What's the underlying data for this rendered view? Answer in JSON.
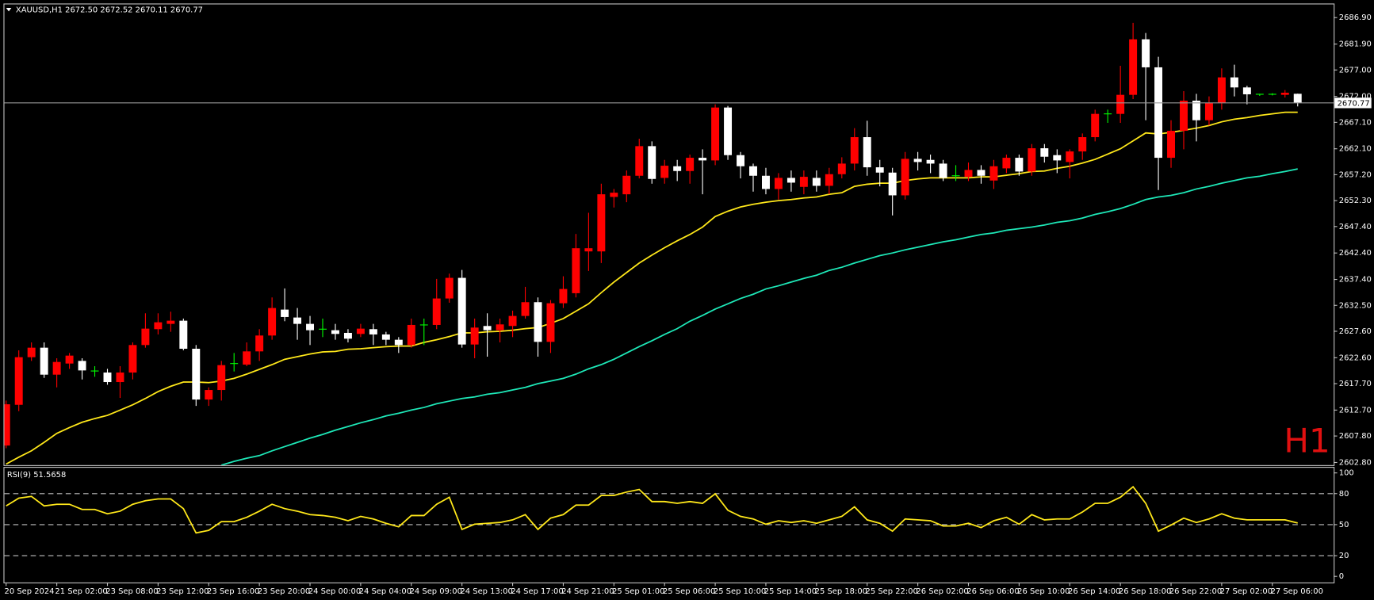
{
  "chart_data": [
    {
      "type": "candlestick",
      "title": "XAUUSD,H1  2672.50 2672.52 2670.11 2670.77",
      "watermark": "H1",
      "categories": [
        "20 Sep 2024",
        null,
        null,
        null,
        "21 Sep 02:00",
        null,
        null,
        null,
        "23 Sep 08:00",
        null,
        null,
        null,
        "23 Sep 12:00",
        null,
        null,
        null,
        "23 Sep 16:00",
        null,
        null,
        null,
        "23 Sep 20:00",
        null,
        null,
        null,
        "24 Sep 00:00",
        null,
        null,
        null,
        "24 Sep 04:00",
        null,
        null,
        null,
        "24 Sep 09:00",
        null,
        null,
        null,
        "24 Sep 13:00",
        null,
        null,
        null,
        "24 Sep 17:00",
        null,
        null,
        null,
        "24 Sep 21:00",
        null,
        null,
        null,
        "25 Sep 01:00",
        null,
        null,
        null,
        "25 Sep 06:00",
        null,
        null,
        null,
        "25 Sep 10:00",
        null,
        null,
        null,
        "25 Sep 14:00",
        null,
        null,
        null,
        "25 Sep 18:00",
        null,
        null,
        null,
        "25 Sep 22:00",
        null,
        null,
        null,
        "26 Sep 02:00",
        null,
        null,
        null,
        "26 Sep 06:00",
        null,
        null,
        null,
        "26 Sep 10:00",
        null,
        null,
        null,
        "26 Sep 14:00",
        null,
        null,
        null,
        "26 Sep 18:00",
        null,
        null,
        null,
        "26 Sep 22:00",
        null,
        null,
        null,
        "27 Sep 02:00",
        null,
        null,
        null,
        "27 Sep 06:00",
        null,
        null
      ],
      "open": [
        2606.0,
        2613.7,
        2622.7,
        2624.5,
        2619.4,
        2621.5,
        2622.0,
        2620.1,
        2619.8,
        2618.0,
        2619.8,
        2625.0,
        2628.0,
        2629.0,
        2629.6,
        2624.3,
        2614.7,
        2616.5,
        2621.5,
        2621.3,
        2623.8,
        2626.8,
        2631.7,
        2630.2,
        2629.0,
        2628.0,
        2627.8,
        2627.3,
        2627.1,
        2628.0,
        2627.0,
        2626.0,
        2625.0,
        2628.8,
        2628.8,
        2633.8,
        2637.7,
        2625.1,
        2628.6,
        2627.8,
        2628.6,
        2630.5,
        2633.1,
        2625.6,
        2632.9,
        2634.8,
        2642.7,
        2642.7,
        2653.0,
        2653.5,
        2657.0,
        2662.6,
        2656.6,
        2658.8,
        2657.9,
        2660.4,
        2659.9,
        2669.9,
        2660.9,
        2658.8,
        2657.0,
        2654.5,
        2656.6,
        2654.9,
        2656.6,
        2655.1,
        2657.3,
        2659.3,
        2664.3,
        2658.6,
        2657.6,
        2653.3,
        2660.2,
        2660.0,
        2659.3,
        2657.0,
        2656.8,
        2658.1,
        2656.1,
        2658.4,
        2660.4,
        2657.8,
        2662.2,
        2660.9,
        2659.6,
        2661.6,
        2664.3,
        2668.7,
        2668.7,
        2672.3,
        2682.8,
        2677.5,
        2660.4,
        2665.5,
        2671.2,
        2667.5,
        2670.8,
        2675.6,
        2673.7,
        2672.4,
        2672.4,
        2672.3,
        2672.5
      ],
      "high": [
        2614.5,
        2624.0,
        2625.5,
        2625.5,
        2622.5,
        2623.5,
        2622.5,
        2621.0,
        2620.5,
        2621.0,
        2625.5,
        2631.0,
        2631.0,
        2631.3,
        2630.0,
        2625.0,
        2617.0,
        2622.0,
        2623.5,
        2625.5,
        2628.0,
        2634.0,
        2635.7,
        2632.0,
        2630.5,
        2630.0,
        2629.0,
        2628.0,
        2629.0,
        2629.0,
        2627.5,
        2626.5,
        2630.0,
        2630.0,
        2637.5,
        2638.5,
        2639.2,
        2630.0,
        2631.0,
        2630.0,
        2631.5,
        2636.0,
        2634.0,
        2633.5,
        2638.0,
        2646.0,
        2650.0,
        2655.5,
        2654.5,
        2658.0,
        2664.0,
        2663.5,
        2660.0,
        2660.0,
        2661.0,
        2662.0,
        2670.5,
        2670.2,
        2661.5,
        2659.3,
        2658.5,
        2657.5,
        2658.0,
        2658.0,
        2658.0,
        2658.5,
        2660.5,
        2666.0,
        2667.4,
        2660.0,
        2658.5,
        2661.5,
        2661.5,
        2661.0,
        2660.0,
        2659.0,
        2659.5,
        2659.0,
        2660.0,
        2661.0,
        2661.0,
        2663.0,
        2663.0,
        2662.0,
        2662.0,
        2665.0,
        2669.5,
        2669.5,
        2677.8,
        2685.9,
        2684.0,
        2679.5,
        2667.5,
        2673.0,
        2672.5,
        2672.0,
        2677.3,
        2678.0,
        2674.0,
        2672.5,
        2672.6,
        2673.2,
        2672.52
      ],
      "low": [
        2605.5,
        2612.5,
        2622.0,
        2618.8,
        2617.0,
        2620.5,
        2618.5,
        2619.0,
        2617.5,
        2615.0,
        2618.5,
        2624.5,
        2627.0,
        2627.5,
        2624.0,
        2613.5,
        2613.5,
        2614.5,
        2620.0,
        2621.0,
        2622.0,
        2626.0,
        2629.5,
        2626.0,
        2625.0,
        2626.5,
        2626.0,
        2625.5,
        2626.5,
        2625.0,
        2625.0,
        2623.5,
        2624.5,
        2625.0,
        2628.0,
        2633.0,
        2624.5,
        2622.5,
        2622.8,
        2625.5,
        2626.5,
        2630.0,
        2622.8,
        2623.5,
        2632.0,
        2634.0,
        2639.0,
        2640.5,
        2651.0,
        2652.0,
        2656.5,
        2655.5,
        2655.5,
        2656.0,
        2655.5,
        2653.5,
        2659.0,
        2660.0,
        2656.5,
        2654.0,
        2653.5,
        2652.5,
        2654.0,
        2653.5,
        2654.0,
        2653.5,
        2656.5,
        2658.0,
        2657.0,
        2655.0,
        2649.5,
        2652.5,
        2658.0,
        2657.5,
        2656.0,
        2656.0,
        2656.0,
        2655.5,
        2654.5,
        2657.5,
        2657.0,
        2657.0,
        2659.5,
        2657.5,
        2656.5,
        2660.0,
        2663.5,
        2667.0,
        2667.0,
        2671.5,
        2667.5,
        2654.3,
        2658.5,
        2662.0,
        2663.5,
        2666.5,
        2669.5,
        2672.0,
        2670.5,
        2672.1,
        2672.2,
        2671.8,
        2670.11
      ],
      "close": [
        2613.8,
        2622.7,
        2624.5,
        2619.4,
        2621.8,
        2623.0,
        2620.2,
        2620.1,
        2618.0,
        2619.8,
        2625.0,
        2628.1,
        2629.3,
        2629.6,
        2624.3,
        2614.7,
        2616.5,
        2621.2,
        2621.5,
        2623.8,
        2626.8,
        2632.0,
        2630.3,
        2629.0,
        2627.8,
        2628.0,
        2627.1,
        2626.2,
        2628.1,
        2627.0,
        2626.0,
        2625.0,
        2628.8,
        2628.8,
        2633.8,
        2637.7,
        2625.1,
        2628.3,
        2627.8,
        2628.9,
        2630.5,
        2633.1,
        2625.6,
        2632.9,
        2635.6,
        2643.3,
        2643.3,
        2653.5,
        2653.8,
        2657.0,
        2662.6,
        2656.4,
        2658.9,
        2657.9,
        2660.4,
        2659.9,
        2669.9,
        2660.9,
        2658.8,
        2657.0,
        2654.5,
        2656.6,
        2655.7,
        2656.8,
        2655.1,
        2657.3,
        2659.3,
        2664.3,
        2658.6,
        2657.6,
        2653.3,
        2660.2,
        2659.6,
        2659.3,
        2656.6,
        2657.0,
        2658.1,
        2657.0,
        2658.8,
        2660.4,
        2657.8,
        2662.2,
        2660.6,
        2659.9,
        2661.6,
        2664.3,
        2668.7,
        2668.7,
        2672.3,
        2682.8,
        2677.5,
        2660.4,
        2665.5,
        2671.2,
        2667.5,
        2670.8,
        2675.6,
        2673.7,
        2672.4,
        2672.4,
        2672.4,
        2672.7,
        2670.77
      ],
      "up_color": "#ff0000",
      "down_color": "#ffffff",
      "doji_color": "#00ff00",
      "overlays": [
        {
          "color": "#ffe81a",
          "values": [
            2602.5,
            2603.8,
            2605.0,
            2606.6,
            2608.3,
            2609.4,
            2610.4,
            2611.1,
            2611.7,
            2612.7,
            2613.7,
            2614.9,
            2616.2,
            2617.2,
            2618.0,
            2618.0,
            2617.9,
            2618.2,
            2618.7,
            2619.5,
            2620.4,
            2621.3,
            2622.3,
            2622.8,
            2623.3,
            2623.7,
            2623.8,
            2624.2,
            2624.3,
            2624.5,
            2624.7,
            2624.8,
            2624.8,
            2625.5,
            2626.0,
            2626.6,
            2627.3,
            2627.3,
            2627.5,
            2627.6,
            2627.8,
            2628.1,
            2628.3,
            2629.1,
            2630.0,
            2631.4,
            2632.8,
            2634.9,
            2636.9,
            2638.7,
            2640.5,
            2642.0,
            2643.4,
            2644.7,
            2645.9,
            2647.3,
            2649.3,
            2650.3,
            2651.1,
            2651.6,
            2652.0,
            2652.3,
            2652.5,
            2652.8,
            2653.0,
            2653.5,
            2653.8,
            2655.0,
            2655.4,
            2655.6,
            2655.6,
            2656.1,
            2656.4,
            2656.6,
            2656.6,
            2656.6,
            2656.6,
            2656.8,
            2656.8,
            2657.1,
            2657.4,
            2657.8,
            2657.9,
            2658.4,
            2658.8,
            2659.4,
            2660.1,
            2661.1,
            2662.1,
            2663.6,
            2665.1,
            2664.9,
            2665.2,
            2665.6,
            2666.0,
            2666.5,
            2667.2,
            2667.7,
            2668.0,
            2668.4,
            2668.7,
            2669.0,
            2669.0
          ]
        },
        {
          "color": "#1ee8b8",
          "values": [
            null,
            null,
            null,
            null,
            null,
            null,
            null,
            null,
            null,
            null,
            null,
            null,
            null,
            null,
            null,
            null,
            null,
            2602.3,
            2603.0,
            2603.6,
            2604.1,
            2605.0,
            2605.8,
            2606.6,
            2607.4,
            2608.1,
            2608.9,
            2609.6,
            2610.3,
            2610.9,
            2611.6,
            2612.1,
            2612.7,
            2613.2,
            2613.9,
            2614.4,
            2614.9,
            2615.2,
            2615.7,
            2616.0,
            2616.5,
            2617.0,
            2617.7,
            2618.2,
            2618.7,
            2619.5,
            2620.5,
            2621.3,
            2622.3,
            2623.5,
            2624.7,
            2625.8,
            2627.0,
            2628.1,
            2629.5,
            2630.6,
            2631.8,
            2632.8,
            2633.8,
            2634.6,
            2635.6,
            2636.2,
            2636.9,
            2637.6,
            2638.2,
            2639.1,
            2639.7,
            2640.5,
            2641.2,
            2641.9,
            2642.4,
            2643.0,
            2643.5,
            2644.0,
            2644.5,
            2644.9,
            2645.4,
            2645.9,
            2646.2,
            2646.7,
            2647.0,
            2647.3,
            2647.7,
            2648.2,
            2648.5,
            2649.0,
            2649.7,
            2650.2,
            2650.8,
            2651.6,
            2652.5,
            2653.0,
            2653.3,
            2653.8,
            2654.5,
            2655.0,
            2655.6,
            2656.1,
            2656.6,
            2656.9,
            2657.4,
            2657.8,
            2658.3
          ]
        }
      ],
      "last_price": {
        "value": 2670.77,
        "label": "2670.77"
      },
      "ylim": [
        2602.3,
        2689.4
      ],
      "yticks": [
        {
          "value": 2686.9,
          "label": "2686.90"
        },
        {
          "value": 2681.9,
          "label": "2681.90"
        },
        {
          "value": 2677.0,
          "label": "2677.00"
        },
        {
          "value": 2672.0,
          "label": "2672.00"
        },
        {
          "value": 2667.1,
          "label": "2667.10"
        },
        {
          "value": 2662.1,
          "label": "2662.10"
        },
        {
          "value": 2657.2,
          "label": "2657.20"
        },
        {
          "value": 2652.3,
          "label": "2652.30"
        },
        {
          "value": 2647.4,
          "label": "2647.40"
        },
        {
          "value": 2642.4,
          "label": "2642.40"
        },
        {
          "value": 2637.4,
          "label": "2637.40"
        },
        {
          "value": 2632.5,
          "label": "2632.50"
        },
        {
          "value": 2627.6,
          "label": "2627.60"
        },
        {
          "value": 2622.6,
          "label": "2622.60"
        },
        {
          "value": 2617.7,
          "label": "2617.70"
        },
        {
          "value": 2612.7,
          "label": "2612.70"
        },
        {
          "value": 2607.8,
          "label": "2607.80"
        },
        {
          "value": 2602.8,
          "label": "2602.80"
        }
      ]
    },
    {
      "type": "line",
      "title": "RSI(9) 51.5658",
      "color": "#ffe81a",
      "values": [
        68.1,
        75.6,
        77.3,
        68.1,
        69.7,
        69.7,
        64.7,
        64.7,
        60.5,
        63.0,
        69.7,
        73.1,
        74.8,
        74.8,
        65.5,
        42.0,
        44.5,
        52.9,
        52.9,
        57.1,
        63.0,
        69.7,
        65.5,
        63.0,
        59.7,
        58.8,
        57.1,
        53.8,
        58.0,
        55.5,
        51.3,
        47.9,
        58.8,
        58.8,
        69.7,
        76.5,
        45.4,
        50.4,
        51.3,
        52.1,
        54.6,
        59.7,
        45.4,
        56.3,
        59.7,
        68.9,
        68.9,
        78.2,
        78.2,
        81.5,
        84.0,
        72.3,
        72.3,
        70.6,
        72.3,
        70.6,
        79.8,
        63.9,
        58.0,
        55.5,
        50.4,
        53.8,
        52.1,
        53.8,
        51.3,
        54.6,
        58.0,
        67.2,
        54.6,
        51.3,
        43.7,
        55.5,
        54.6,
        53.8,
        48.7,
        48.7,
        51.3,
        47.1,
        53.8,
        57.1,
        50.4,
        59.7,
        54.6,
        55.5,
        55.5,
        62.2,
        70.6,
        70.6,
        76.5,
        86.6,
        70.6,
        43.7,
        49.6,
        56.3,
        52.1,
        55.5,
        60.5,
        56.3,
        54.6,
        54.6,
        54.6,
        54.6,
        51.5658
      ],
      "ylim": [
        -5.9,
        105
      ],
      "yticks": [
        100,
        80,
        50,
        20,
        0
      ],
      "levels": [
        80,
        50,
        20
      ]
    }
  ]
}
